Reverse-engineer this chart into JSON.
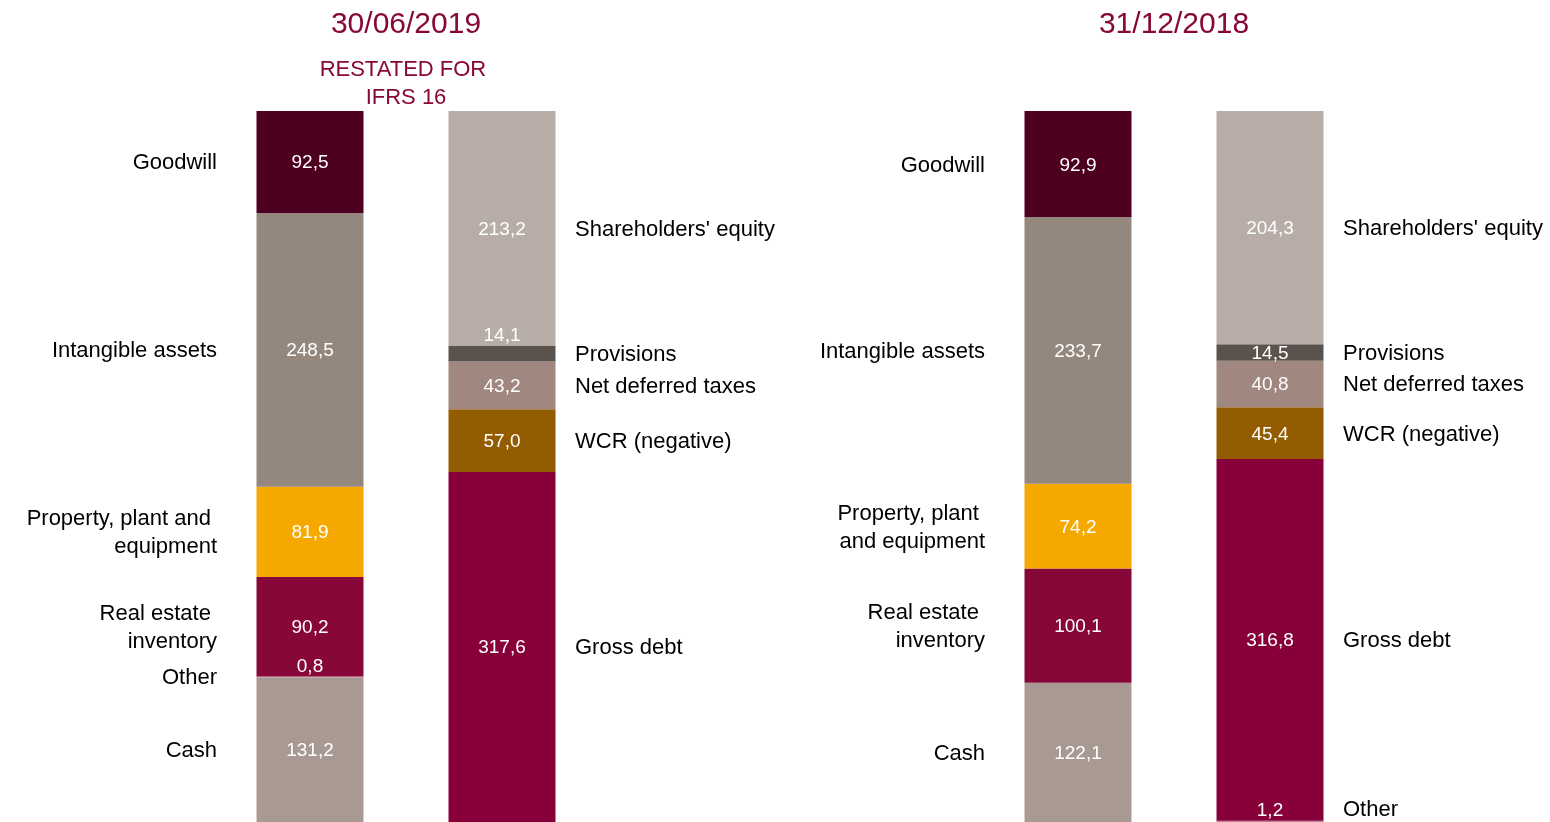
{
  "chart_data": [
    {
      "type": "bar",
      "title": "30/06/2019",
      "subtitle": "RESTATED FOR IFRS 16",
      "stacked": true,
      "legend": false,
      "categories": [
        null,
        null
      ],
      "series": [
        {
          "name": "Cash",
          "color": "#a89a92",
          "values": [
            131.2,
            null
          ],
          "value_labels": [
            "131,2",
            null
          ]
        },
        {
          "name": "Other",
          "color": "#c07890",
          "values": [
            0.8,
            null
          ],
          "value_labels": [
            "0,8",
            null
          ]
        },
        {
          "name": "Real estate inventory",
          "color": "#870838",
          "values": [
            90.2,
            null
          ],
          "value_labels": [
            "90,2",
            null
          ]
        },
        {
          "name": "Property, plant and equipment",
          "color": "#f5a800",
          "values": [
            81.9,
            null
          ],
          "value_labels": [
            "81,9",
            null
          ]
        },
        {
          "name": "Intangible assets",
          "color": "#94877d",
          "values": [
            248.5,
            null
          ],
          "value_labels": [
            "248,5",
            null
          ]
        },
        {
          "name": "Goodwill",
          "color": "#4e0020",
          "values": [
            92.5,
            null
          ],
          "value_labels": [
            "92,5",
            null
          ]
        },
        {
          "name": "Gross debt",
          "color": "#87003a",
          "values": [
            null,
            317.6
          ],
          "value_labels": [
            null,
            "317,6"
          ]
        },
        {
          "name": "WCR (negative)",
          "color": "#935c00",
          "values": [
            null,
            57.0
          ],
          "value_labels": [
            null,
            "57,0"
          ]
        },
        {
          "name": "Net deferred taxes",
          "color": "#a08780",
          "values": [
            null,
            43.2
          ],
          "value_labels": [
            null,
            "43,2"
          ]
        },
        {
          "name": "Provisions",
          "color": "#5a524c",
          "values": [
            null,
            14.1
          ],
          "value_labels": [
            null,
            "14,1"
          ]
        },
        {
          "name": "Shareholders' equity",
          "color": "#b8ada6",
          "values": [
            null,
            213.2
          ],
          "value_labels": [
            null,
            "213,2"
          ]
        }
      ]
    },
    {
      "type": "bar",
      "title": "31/12/2018",
      "stacked": true,
      "legend": false,
      "categories": [
        null,
        null
      ],
      "series": [
        {
          "name": "Cash",
          "color": "#a89a92",
          "values": [
            122.1,
            null
          ],
          "value_labels": [
            "122,1",
            null
          ]
        },
        {
          "name": "Real estate inventory",
          "color": "#870838",
          "values": [
            100.1,
            null
          ],
          "value_labels": [
            "100,1",
            null
          ]
        },
        {
          "name": "Property, plant and equipment",
          "color": "#f5a800",
          "values": [
            74.2,
            null
          ],
          "value_labels": [
            "74,2",
            null
          ]
        },
        {
          "name": "Intangible assets",
          "color": "#94877d",
          "values": [
            233.7,
            null
          ],
          "value_labels": [
            "233,7",
            null
          ]
        },
        {
          "name": "Goodwill",
          "color": "#4e0020",
          "values": [
            92.9,
            null
          ],
          "value_labels": [
            "92,9",
            null
          ]
        },
        {
          "name": "Other",
          "color": "#c07890",
          "values": [
            null,
            1.2
          ],
          "value_labels": [
            null,
            "1,2"
          ]
        },
        {
          "name": "Gross debt",
          "color": "#87003a",
          "values": [
            null,
            316.8
          ],
          "value_labels": [
            null,
            "316,8"
          ]
        },
        {
          "name": "WCR (negative)",
          "color": "#935c00",
          "values": [
            null,
            45.4
          ],
          "value_labels": [
            null,
            "45,4"
          ]
        },
        {
          "name": "Net deferred taxes",
          "color": "#a08780",
          "values": [
            null,
            40.8
          ],
          "value_labels": [
            null,
            "40,8"
          ]
        },
        {
          "name": "Provisions",
          "color": "#5a524c",
          "values": [
            null,
            14.5
          ],
          "value_labels": [
            null,
            "14,5"
          ]
        },
        {
          "name": "Shareholders' equity",
          "color": "#b8ada6",
          "values": [
            null,
            204.3
          ],
          "value_labels": [
            null,
            "204,3"
          ]
        }
      ]
    }
  ]
}
